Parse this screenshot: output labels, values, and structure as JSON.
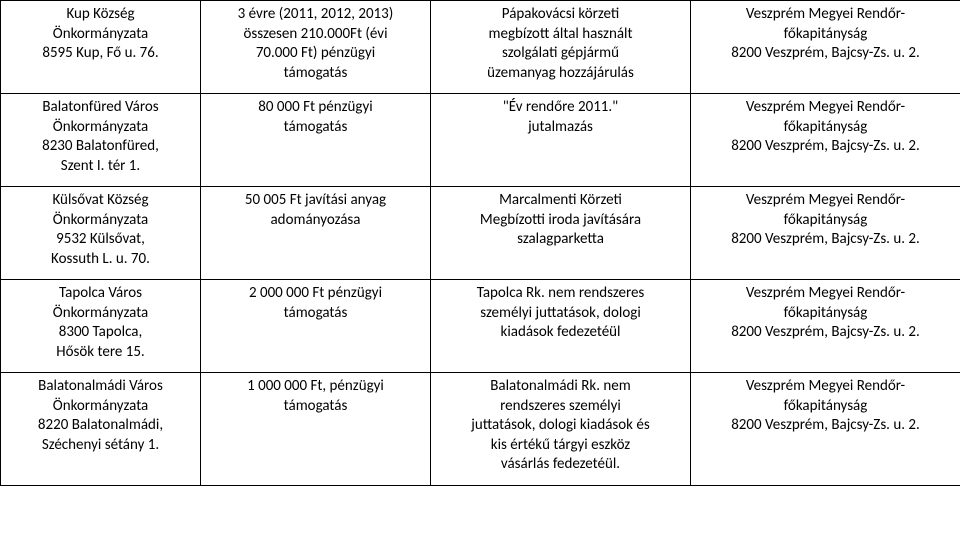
{
  "rows": [
    {
      "c1": [
        "Kup Község",
        "Önkormányzata",
        "8595 Kup, Fő u. 76."
      ],
      "c2": [
        "3 évre (2011, 2012, 2013)",
        "összesen 210.000Ft (évi",
        "70.000 Ft) pénzügyi",
        "támogatás"
      ],
      "c3": [
        "Pápakovácsi körzeti",
        "megbízott által használt",
        "szolgálati gépjármű",
        "üzemanyag hozzájárulás"
      ],
      "c4": [
        "Veszprém Megyei Rendőr-",
        "főkapitányság",
        "8200 Veszprém, Bajcsy-Zs. u. 2."
      ]
    },
    {
      "c1": [
        "Balatonfüred Város",
        "Önkormányzata",
        "8230 Balatonfüred,",
        "Szent I. tér 1."
      ],
      "c2": [
        "80 000 Ft pénzügyi",
        "támogatás"
      ],
      "c3": [
        "\"Év rendőre 2011.\"",
        "jutalmazás"
      ],
      "c4": [
        "Veszprém Megyei Rendőr-",
        "főkapitányság",
        "8200 Veszprém, Bajcsy-Zs. u. 2."
      ]
    },
    {
      "c1": [
        "Külsővat Község",
        "Önkormányzata",
        "9532 Külsővat,",
        "Kossuth L. u. 70."
      ],
      "c2": [
        "50 005 Ft javítási anyag",
        "adományozása"
      ],
      "c3": [
        "Marcalmenti Körzeti",
        "Megbízotti iroda javítására",
        "szalagparketta"
      ],
      "c4": [
        "Veszprém Megyei Rendőr-",
        "főkapitányság",
        "8200 Veszprém, Bajcsy-Zs. u. 2."
      ]
    },
    {
      "c1": [
        "Tapolca Város",
        "Önkormányzata",
        "8300 Tapolca,",
        "Hősök tere 15."
      ],
      "c2": [
        "2 000 000 Ft pénzügyi",
        "támogatás"
      ],
      "c3": [
        "Tapolca Rk. nem rendszeres",
        "személyi juttatások, dologi",
        "kiadások fedezetéül"
      ],
      "c4": [
        "Veszprém Megyei Rendőr-",
        "főkapitányság",
        "8200 Veszprém, Bajcsy-Zs. u. 2."
      ]
    },
    {
      "c1": [
        "Balatonalmádi Város",
        "Önkormányzata",
        "8220 Balatonalmádi,",
        "Széchenyi sétány 1."
      ],
      "c2": [
        "1 000 000 Ft, pénzügyi",
        "támogatás"
      ],
      "c3": [
        "Balatonalmádi Rk. nem",
        "rendszeres személyi",
        "juttatások, dologi kiadások és",
        "kis értékű tárgyi eszköz",
        "vásárlás fedezetéül."
      ],
      "c4": [
        "Veszprém Megyei Rendőr-",
        "főkapitányság",
        "8200 Veszprém, Bajcsy-Zs. u. 2."
      ]
    }
  ]
}
